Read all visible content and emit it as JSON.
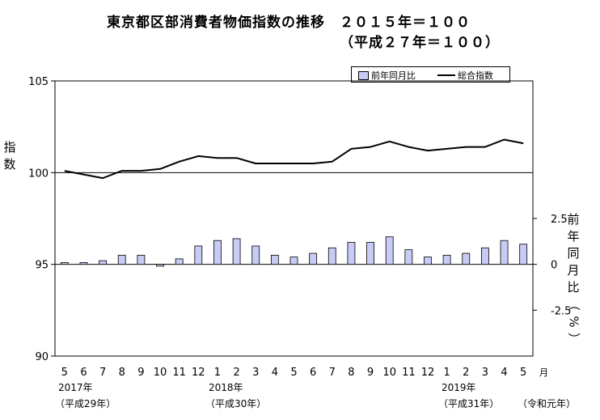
{
  "title_line1": "東京都区部消費者物価指数の推移　２０１５年＝１００",
  "title_line2": "（平成２７年＝１００）",
  "left_axis_label": "指数",
  "right_axis_label": "前年同月比（%）",
  "month_unit": "月",
  "legend": {
    "bar": "前年同月比",
    "line": "総合指数"
  },
  "year_labels": [
    {
      "year": "2017年",
      "era": "（平成29年）"
    },
    {
      "year": "2018年",
      "era": "（平成30年）"
    },
    {
      "year": "2019年",
      "era": "（平成31年）"
    },
    {
      "era": "（令和元年）"
    }
  ],
  "chart_data": {
    "type": "bar+line",
    "categories": [
      "5",
      "6",
      "7",
      "8",
      "9",
      "10",
      "11",
      "12",
      "1",
      "2",
      "3",
      "4",
      "5",
      "6",
      "7",
      "8",
      "9",
      "10",
      "11",
      "12",
      "1",
      "2",
      "3",
      "4",
      "5"
    ],
    "left_axis": {
      "ticks": [
        "105",
        "100",
        "95",
        "90"
      ],
      "ylim": [
        90,
        105
      ]
    },
    "right_axis": {
      "ticks": [
        "2.5",
        "0",
        "-2.5"
      ],
      "ylim": [
        -5,
        10
      ]
    },
    "series": [
      {
        "name": "総合指数",
        "type": "line",
        "axis": "left",
        "values": [
          100.1,
          99.9,
          99.7,
          100.1,
          100.1,
          100.2,
          100.6,
          100.9,
          100.8,
          100.8,
          100.5,
          100.5,
          100.5,
          100.5,
          100.6,
          101.3,
          101.4,
          101.7,
          101.4,
          101.2,
          101.3,
          101.4,
          101.4,
          101.8,
          101.6
        ]
      },
      {
        "name": "前年同月比",
        "type": "bar",
        "axis": "right",
        "values": [
          0.1,
          0.1,
          0.2,
          0.5,
          0.5,
          -0.1,
          0.3,
          1.0,
          1.3,
          1.4,
          1.0,
          0.5,
          0.4,
          0.6,
          0.9,
          1.2,
          1.2,
          1.5,
          0.8,
          0.4,
          0.5,
          0.6,
          0.9,
          1.3,
          1.1
        ]
      }
    ],
    "colors": {
      "bar_fill": "#c8cbf5",
      "outline": "#000000"
    }
  }
}
